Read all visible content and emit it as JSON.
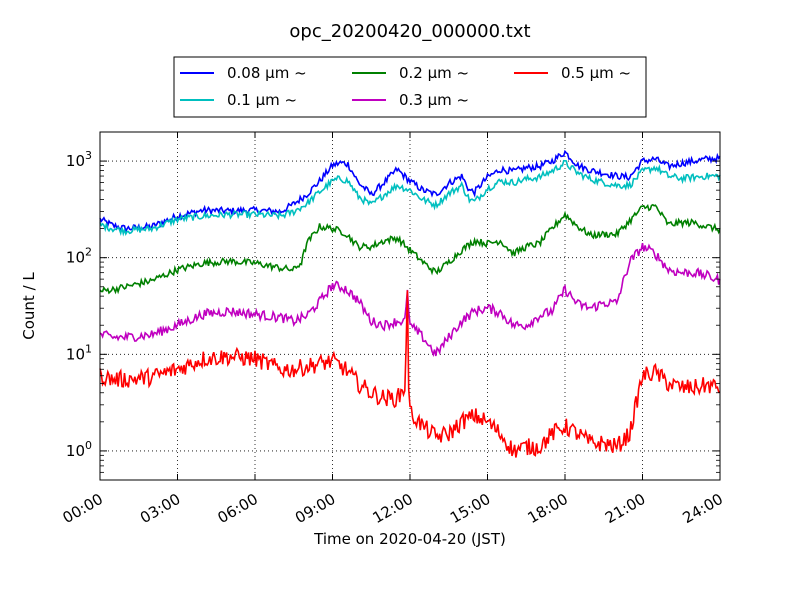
{
  "chart_data": {
    "type": "line",
    "title": "opc_20200420_000000.txt",
    "xlabel": "Time on 2020-04-20 (JST)",
    "ylabel": "Count / L",
    "x_unit": "hour",
    "xlim": [
      0,
      24
    ],
    "ylim": [
      0.5,
      2000
    ],
    "yscale": "log",
    "grid": true,
    "legend_position": "top-center",
    "x_ticks": [
      {
        "value": 0,
        "label": "00:00"
      },
      {
        "value": 3,
        "label": "03:00"
      },
      {
        "value": 6,
        "label": "06:00"
      },
      {
        "value": 9,
        "label": "09:00"
      },
      {
        "value": 12,
        "label": "12:00"
      },
      {
        "value": 15,
        "label": "15:00"
      },
      {
        "value": 18,
        "label": "18:00"
      },
      {
        "value": 21,
        "label": "21:00"
      },
      {
        "value": 24,
        "label": "24:00"
      }
    ],
    "y_ticks": [
      {
        "value": 1,
        "base": "10",
        "exp": "0"
      },
      {
        "value": 10,
        "base": "10",
        "exp": "1"
      },
      {
        "value": 100,
        "base": "10",
        "exp": "2"
      },
      {
        "value": 1000,
        "base": "10",
        "exp": "3"
      }
    ],
    "series": [
      {
        "name": "0.08 μm ~",
        "color": "#0000ff",
        "x": [
          0,
          0.5,
          1,
          2,
          3,
          4,
          5,
          6,
          7,
          7.5,
          8,
          8.5,
          9,
          9.3,
          9.6,
          10,
          10.5,
          11,
          11.5,
          12,
          12.5,
          13,
          13.5,
          14,
          14.3,
          14.5,
          15,
          15.5,
          16,
          16.5,
          17,
          17.5,
          18,
          18.5,
          19,
          19.5,
          20,
          20.5,
          21,
          21.5,
          22,
          22.5,
          23,
          23.5,
          24
        ],
        "y": [
          250,
          215,
          200,
          210,
          270,
          310,
          305,
          310,
          300,
          360,
          450,
          620,
          900,
          960,
          930,
          600,
          450,
          600,
          820,
          620,
          500,
          450,
          590,
          700,
          500,
          480,
          680,
          820,
          780,
          850,
          880,
          1000,
          1240,
          900,
          800,
          750,
          700,
          680,
          1000,
          1050,
          880,
          950,
          1000,
          1050,
          1070
        ]
      },
      {
        "name": "0.1 μm ~",
        "color": "#00bfbf",
        "x": [
          0,
          0.5,
          1,
          2,
          3,
          4,
          5,
          6,
          7,
          7.5,
          8,
          8.5,
          9,
          9.3,
          9.6,
          10,
          10.5,
          11,
          11.5,
          12,
          12.5,
          13,
          13.5,
          14,
          14.3,
          14.5,
          15,
          15.5,
          16,
          16.5,
          17,
          17.5,
          18,
          18.5,
          19,
          19.5,
          20,
          20.5,
          21,
          21.5,
          22,
          22.5,
          23,
          23.5,
          24
        ],
        "y": [
          220,
          200,
          190,
          200,
          250,
          270,
          280,
          280,
          270,
          300,
          360,
          480,
          620,
          660,
          620,
          430,
          350,
          450,
          560,
          500,
          400,
          350,
          460,
          560,
          400,
          380,
          520,
          620,
          600,
          650,
          680,
          790,
          960,
          750,
          650,
          600,
          560,
          560,
          780,
          860,
          700,
          660,
          680,
          700,
          700
        ]
      },
      {
        "name": "0.2 μm ~",
        "color": "#008000",
        "x": [
          0,
          0.5,
          1,
          2,
          3,
          4,
          5,
          6,
          7,
          7.5,
          7.8,
          8,
          8.5,
          9,
          9.5,
          10,
          10.5,
          11,
          11.5,
          12,
          12.5,
          13,
          13.5,
          14,
          14.5,
          15,
          15.5,
          16,
          16.5,
          17,
          17.5,
          18,
          18.5,
          19,
          19.5,
          20,
          20.5,
          21,
          21.5,
          22,
          22.5,
          23,
          23.5,
          24
        ],
        "y": [
          45,
          47,
          50,
          58,
          75,
          88,
          92,
          88,
          78,
          75,
          90,
          140,
          210,
          200,
          180,
          130,
          130,
          150,
          160,
          120,
          90,
          70,
          90,
          120,
          150,
          140,
          150,
          110,
          130,
          140,
          200,
          280,
          210,
          170,
          175,
          175,
          240,
          330,
          340,
          220,
          230,
          230,
          210,
          195
        ]
      },
      {
        "name": "0.3 μm ~",
        "color": "#c000c0",
        "x": [
          0,
          0.5,
          1,
          2,
          3,
          4,
          5,
          6,
          7,
          7.5,
          8,
          8.5,
          9,
          9.5,
          10,
          10.5,
          11,
          11.5,
          11.8,
          11.9,
          11.95,
          12,
          12.5,
          13,
          13.5,
          14,
          14.5,
          15,
          15.5,
          16,
          16.5,
          17,
          17.5,
          18,
          18.5,
          19,
          19.5,
          20,
          20.5,
          21,
          21.5,
          22,
          22.5,
          23,
          23.5,
          24
        ],
        "y": [
          16,
          15,
          15,
          16,
          20,
          26,
          28,
          26,
          24,
          22,
          25,
          35,
          52,
          48,
          36,
          22,
          20,
          22,
          22,
          42,
          30,
          20,
          15,
          10,
          15,
          22,
          28,
          30,
          27,
          20,
          20,
          25,
          28,
          47,
          33,
          30,
          34,
          34,
          90,
          130,
          110,
          75,
          70,
          70,
          65,
          58
        ]
      },
      {
        "name": "0.5 μm ~",
        "color": "#ff0000",
        "x": [
          0,
          0.5,
          1,
          2,
          3,
          4,
          5,
          6,
          7,
          7.5,
          8,
          8.5,
          9,
          9.5,
          10,
          10.5,
          11,
          11.5,
          11.8,
          11.9,
          11.95,
          12,
          12.5,
          13,
          13.5,
          14,
          14.5,
          15,
          15.5,
          16,
          16.5,
          17,
          17.5,
          18,
          18.5,
          19,
          19.5,
          20,
          20.5,
          21,
          21.5,
          22,
          22.5,
          23,
          23.5,
          24
        ],
        "y": [
          6,
          5.5,
          5.5,
          5.8,
          7,
          9,
          9.5,
          9,
          7,
          7,
          7.5,
          8,
          8.5,
          7,
          5,
          4,
          3.5,
          3.5,
          4.5,
          40,
          5,
          2.5,
          1.8,
          1.4,
          1.5,
          2,
          2.3,
          2,
          1.5,
          1,
          1.1,
          1.1,
          1.5,
          1.8,
          1.5,
          1.2,
          1.2,
          1.1,
          1.5,
          6,
          6.5,
          5,
          4.5,
          4.5,
          4.8,
          4.5
        ]
      }
    ]
  }
}
